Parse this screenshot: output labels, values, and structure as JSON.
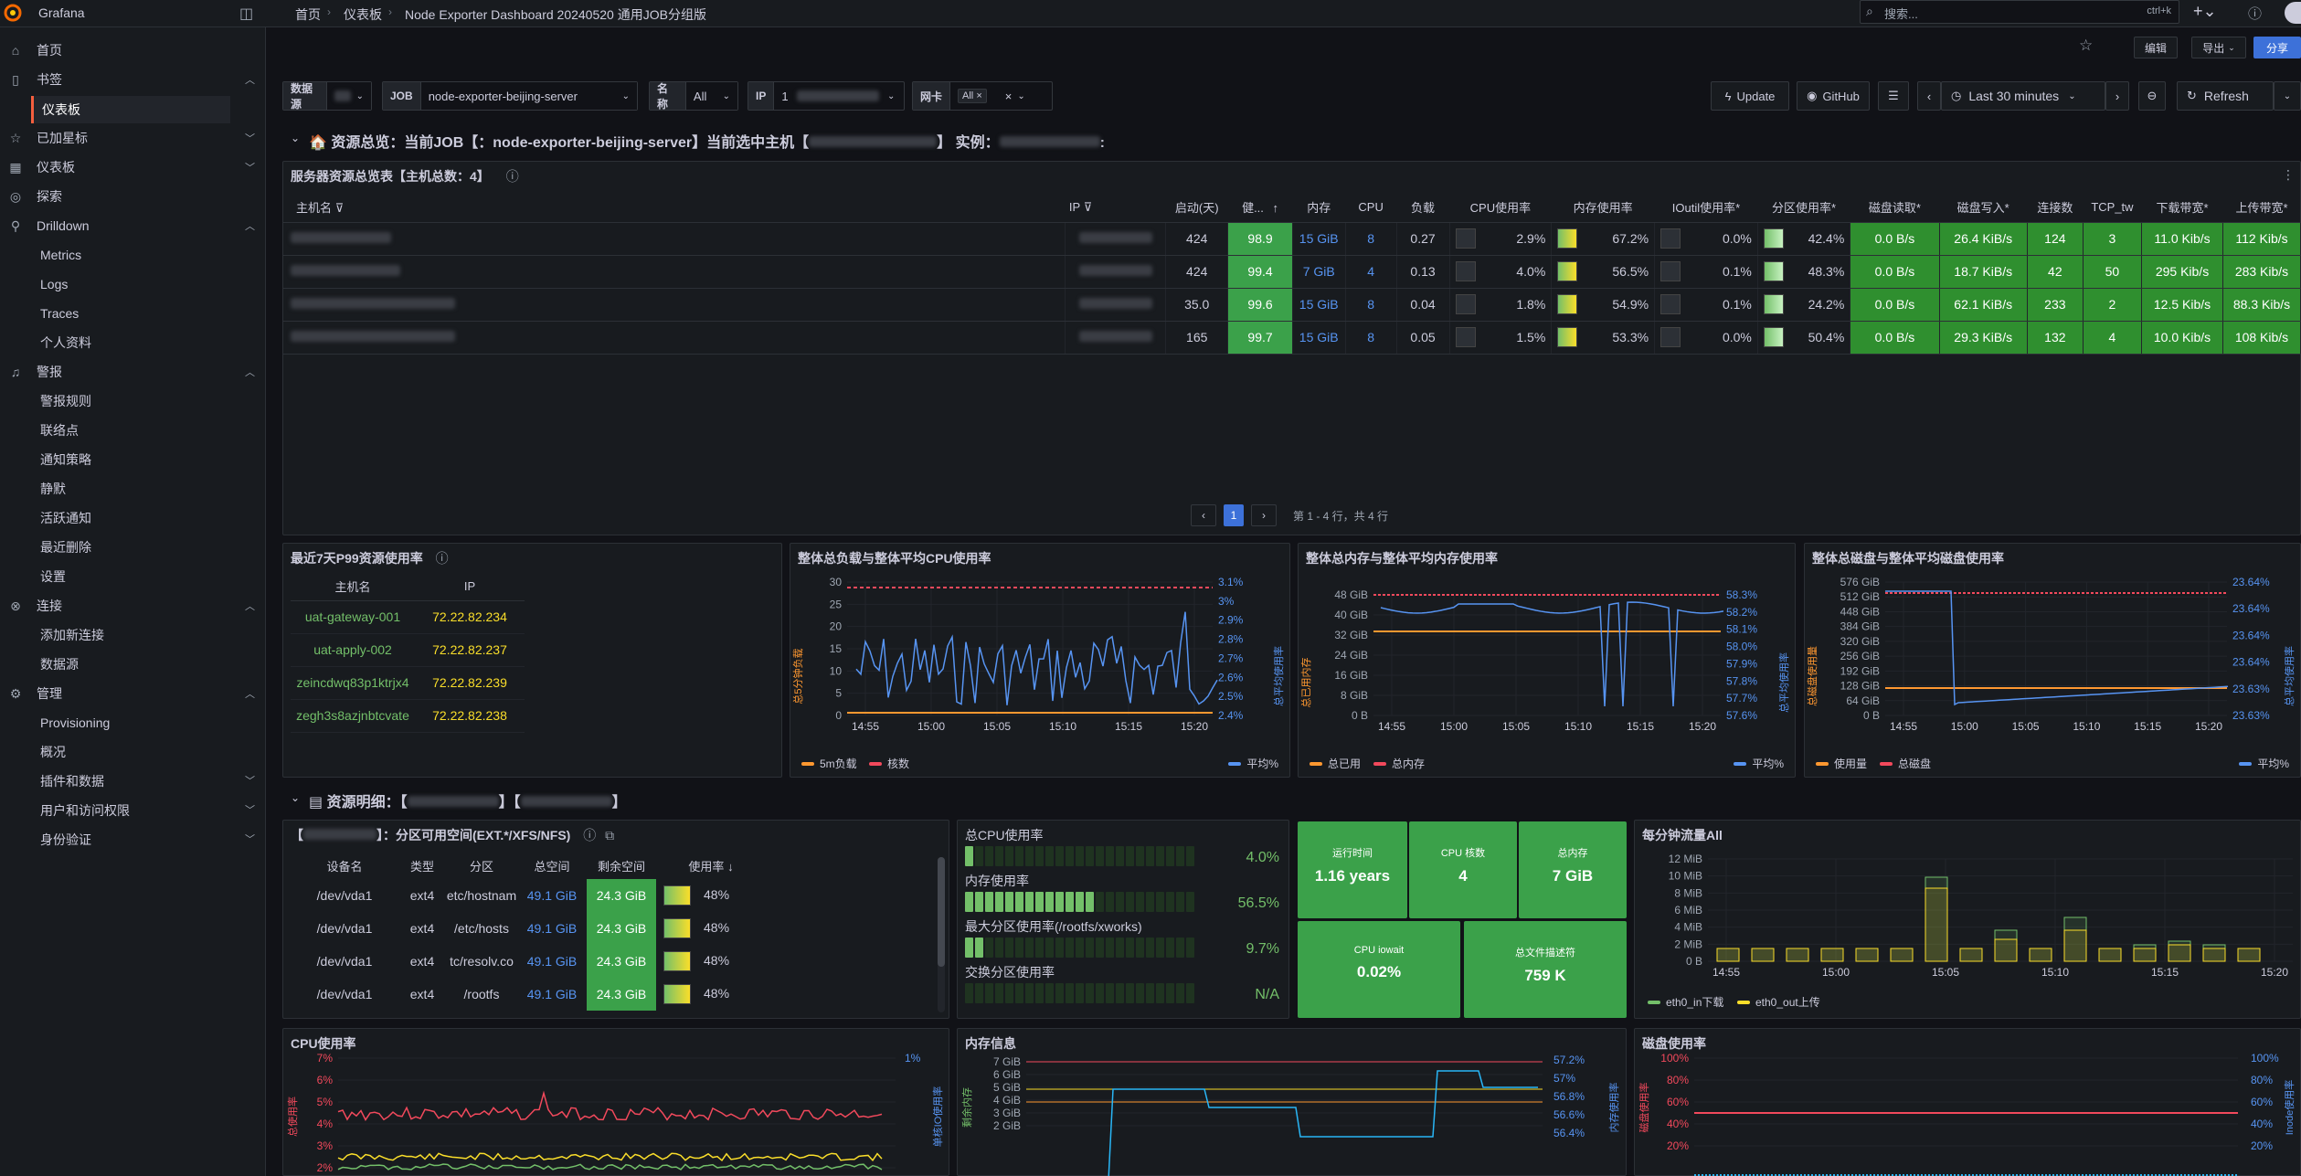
{
  "topbar": {
    "brand": "Grafana",
    "breadcrumb": [
      "首页",
      "仪表板",
      "Node Exporter Dashboard 20240520 通用JOB分组版"
    ],
    "search_placeholder": "搜索...",
    "search_shortcut": "ctrl+k"
  },
  "toolbar": {
    "edit": "编辑",
    "export": "导出",
    "share": "分享"
  },
  "sidebar": {
    "items": [
      {
        "label": "首页"
      },
      {
        "label": "书签"
      },
      {
        "label": "仪表板"
      },
      {
        "label": "已加星标"
      },
      {
        "label": "仪表板"
      },
      {
        "label": "探索"
      },
      {
        "label": "Drilldown"
      },
      {
        "label": "Metrics"
      },
      {
        "label": "Logs"
      },
      {
        "label": "Traces"
      },
      {
        "label": "个人资料"
      },
      {
        "label": "警报"
      },
      {
        "label": "警报规则"
      },
      {
        "label": "联络点"
      },
      {
        "label": "通知策略"
      },
      {
        "label": "静默"
      },
      {
        "label": "活跃通知"
      },
      {
        "label": "最近删除"
      },
      {
        "label": "设置"
      },
      {
        "label": "连接"
      },
      {
        "label": "添加新连接"
      },
      {
        "label": "数据源"
      },
      {
        "label": "管理"
      },
      {
        "label": "Provisioning"
      },
      {
        "label": "概况"
      },
      {
        "label": "插件和数据"
      },
      {
        "label": "用户和访问权限"
      },
      {
        "label": "身份验证"
      }
    ]
  },
  "variables": {
    "datasource_label": "数据源",
    "job_label": "JOB",
    "job_value": "node-exporter-beijing-server",
    "name_label": "名称",
    "name_value": "All",
    "ip_label": "IP",
    "ip_value": "1",
    "nic_label": "网卡",
    "nic_value": "All"
  },
  "controls": {
    "update": "Update",
    "github": "GitHub",
    "time_range": "Last 30 minutes",
    "refresh": "Refresh"
  },
  "row1": {
    "title": "资源总览：当前JOB【：node-exporter-beijing-server】当前选中主机【",
    "instance_label": "实例："
  },
  "server_table": {
    "title": "服务器资源总览表【主机总数：4】",
    "columns": [
      "主机名",
      "IP",
      "启动(天)",
      "健...",
      "内存",
      "CPU",
      "负载",
      "CPU使用率",
      "内存使用率",
      "IOutil使用率*",
      "分区使用率*",
      "磁盘读取*",
      "磁盘写入*",
      "连接数",
      "TCP_tw",
      "下载带宽*",
      "上传带宽*"
    ],
    "rows": [
      {
        "uptime": "424",
        "health": "98.9",
        "mem": "15 GiB",
        "cpu": "8",
        "load": "0.27",
        "cpu_pct": "2.9%",
        "mem_pct": "67.2%",
        "io_pct": "0.0%",
        "part_pct": "42.4%",
        "disk_r": "0.0 B/s",
        "disk_w": "26.4 KiB/s",
        "conn": "124",
        "tcp_tw": "3",
        "down": "11.0 Kib/s",
        "up": "112 Kib/s"
      },
      {
        "uptime": "424",
        "health": "99.4",
        "mem": "7 GiB",
        "cpu": "4",
        "load": "0.13",
        "cpu_pct": "4.0%",
        "mem_pct": "56.5%",
        "io_pct": "0.1%",
        "part_pct": "48.3%",
        "disk_r": "0.0 B/s",
        "disk_w": "18.7 KiB/s",
        "conn": "42",
        "tcp_tw": "50",
        "down": "295 Kib/s",
        "up": "283 Kib/s"
      },
      {
        "uptime": "35.0",
        "health": "99.6",
        "mem": "15 GiB",
        "cpu": "8",
        "load": "0.04",
        "cpu_pct": "1.8%",
        "mem_pct": "54.9%",
        "io_pct": "0.1%",
        "part_pct": "24.2%",
        "disk_r": "0.0 B/s",
        "disk_w": "62.1 KiB/s",
        "conn": "233",
        "tcp_tw": "2",
        "down": "12.5 Kib/s",
        "up": "88.3 Kib/s"
      },
      {
        "uptime": "165",
        "health": "99.7",
        "mem": "15 GiB",
        "cpu": "8",
        "load": "0.05",
        "cpu_pct": "1.5%",
        "mem_pct": "53.3%",
        "io_pct": "0.0%",
        "part_pct": "50.4%",
        "disk_r": "0.0 B/s",
        "disk_w": "29.3 KiB/s",
        "conn": "132",
        "tcp_tw": "4",
        "down": "10.0 Kib/s",
        "up": "108 Kib/s"
      }
    ],
    "pagination": {
      "page": "1",
      "summary": "第 1 - 4 行，共 4 行"
    }
  },
  "p99": {
    "title": "最近7天P99资源使用率",
    "columns": [
      "主机名",
      "IP"
    ],
    "rows": [
      {
        "host": "uat-gateway-001",
        "ip": "72.22.82.234"
      },
      {
        "host": "uat-apply-002",
        "ip": "72.22.82.237"
      },
      {
        "host": "zeincdwq83p1ktrjx4",
        "ip": "72.22.82.239"
      },
      {
        "host": "zegh3s8azjnbtcvate",
        "ip": "72.22.82.238"
      }
    ]
  },
  "chart_load": {
    "title": "整体总负载与整体平均CPU使用率",
    "left_axis_label": "总5分钟负载",
    "right_axis_label": "总平均使用率",
    "left_ticks": [
      "30",
      "25",
      "20",
      "15",
      "10",
      "5",
      "0"
    ],
    "right_ticks": [
      "3.1%",
      "3%",
      "2.9%",
      "2.8%",
      "2.7%",
      "2.6%",
      "2.5%",
      "2.4%"
    ],
    "x_ticks": [
      "14:55",
      "15:00",
      "15:05",
      "15:10",
      "15:15",
      "15:20"
    ],
    "legend": [
      "5m负载",
      "核数",
      "平均%"
    ]
  },
  "chart_mem": {
    "title": "整体总内存与整体平均内存使用率",
    "left_axis_label": "总已用内存",
    "right_axis_label": "总平均使用率",
    "left_ticks": [
      "48 GiB",
      "40 GiB",
      "32 GiB",
      "24 GiB",
      "16 GiB",
      "8 GiB",
      "0 B"
    ],
    "right_ticks": [
      "58.3%",
      "58.2%",
      "58.1%",
      "58.0%",
      "57.9%",
      "57.8%",
      "57.7%",
      "57.6%"
    ],
    "x_ticks": [
      "14:55",
      "15:00",
      "15:05",
      "15:10",
      "15:15",
      "15:20"
    ],
    "legend": [
      "总已用",
      "总内存",
      "平均%"
    ]
  },
  "chart_disk": {
    "title": "整体总磁盘与整体平均磁盘使用率",
    "left_axis_label": "总磁盘使用量",
    "right_axis_label": "总平均使用率",
    "left_ticks": [
      "576 GiB",
      "512 GiB",
      "448 GiB",
      "384 GiB",
      "320 GiB",
      "256 GiB",
      "192 GiB",
      "128 GiB",
      "64 GiB",
      "0 B"
    ],
    "right_ticks": [
      "23.64%",
      "23.64%",
      "23.64%",
      "23.64%",
      "23.63%",
      "23.63%"
    ],
    "x_ticks": [
      "14:55",
      "15:00",
      "15:05",
      "15:10",
      "15:15",
      "15:20"
    ],
    "legend": [
      "使用量",
      "总磁盘",
      "平均%"
    ]
  },
  "row2": {
    "title": "资源明细：【",
    "suffix": "】"
  },
  "partition_table": {
    "title": "：分区可用空间(EXT.*/XFS/NFS)",
    "columns": [
      "设备名",
      "类型",
      "分区",
      "总空间",
      "剩余空间",
      "使用率"
    ],
    "rows": [
      {
        "dev": "/dev/vda1",
        "type": "ext4",
        "mount": "etc/hostnam",
        "total": "49.1 GiB",
        "free": "24.3 GiB",
        "pct": "48%"
      },
      {
        "dev": "/dev/vda1",
        "type": "ext4",
        "mount": "/etc/hosts",
        "total": "49.1 GiB",
        "free": "24.3 GiB",
        "pct": "48%"
      },
      {
        "dev": "/dev/vda1",
        "type": "ext4",
        "mount": "tc/resolv.co",
        "total": "49.1 GiB",
        "free": "24.3 GiB",
        "pct": "48%"
      },
      {
        "dev": "/dev/vda1",
        "type": "ext4",
        "mount": "/rootfs",
        "total": "49.1 GiB",
        "free": "24.3 GiB",
        "pct": "48%"
      }
    ]
  },
  "gauges": [
    {
      "label": "总CPU使用率",
      "value": "4.0%",
      "fill": 0.04
    },
    {
      "label": "内存使用率",
      "value": "56.5%",
      "fill": 0.565
    },
    {
      "label": "最大分区使用率(/rootfs/xworks)",
      "value": "9.7%",
      "fill": 0.097
    },
    {
      "label": "交换分区使用率",
      "value": "N/A",
      "fill": 0
    }
  ],
  "stats": [
    {
      "label": "运行时间",
      "value": "1.16 years"
    },
    {
      "label": "CPU 核数",
      "value": "4"
    },
    {
      "label": "总内存",
      "value": "7 GiB"
    },
    {
      "label": "CPU iowait",
      "value": "0.02%"
    },
    {
      "label": "总文件描述符",
      "value": "759 K"
    }
  ],
  "chart_traffic": {
    "title": "每分钟流量All",
    "left_ticks": [
      "12 MiB",
      "10 MiB",
      "8 MiB",
      "6 MiB",
      "4 MiB",
      "2 MiB",
      "0 B"
    ],
    "x_ticks": [
      "14:55",
      "15:00",
      "15:05",
      "15:10",
      "15:15",
      "15:20"
    ],
    "legend": [
      "eth0_in下载",
      "eth0_out上传"
    ]
  },
  "chart_cpu": {
    "title": "CPU使用率",
    "left_ticks": [
      "7%",
      "6%",
      "5%",
      "4%",
      "3%",
      "2%"
    ],
    "right_tick": "1%",
    "left_axis_label": "总使用率",
    "right_axis_label": "单核IO使用率"
  },
  "chart_meminfo": {
    "title": "内存信息",
    "left_ticks": [
      "7 GiB",
      "6 GiB",
      "5 GiB",
      "4 GiB",
      "3 GiB",
      "2 GiB"
    ],
    "right_ticks": [
      "57.2%",
      "57%",
      "56.8%",
      "56.6%",
      "56.4%"
    ],
    "left_axis_label": "剩余内存",
    "right_axis_label": "内存使用率"
  },
  "chart_diskuse": {
    "title": "磁盘使用率",
    "left_ticks": [
      "100%",
      "80%",
      "60%",
      "40%",
      "20%"
    ],
    "right_ticks": [
      "100%",
      "80%",
      "60%",
      "40%",
      "20%"
    ],
    "left_axis_label": "磁盘使用率",
    "right_axis_label": "Inode使用率"
  }
}
